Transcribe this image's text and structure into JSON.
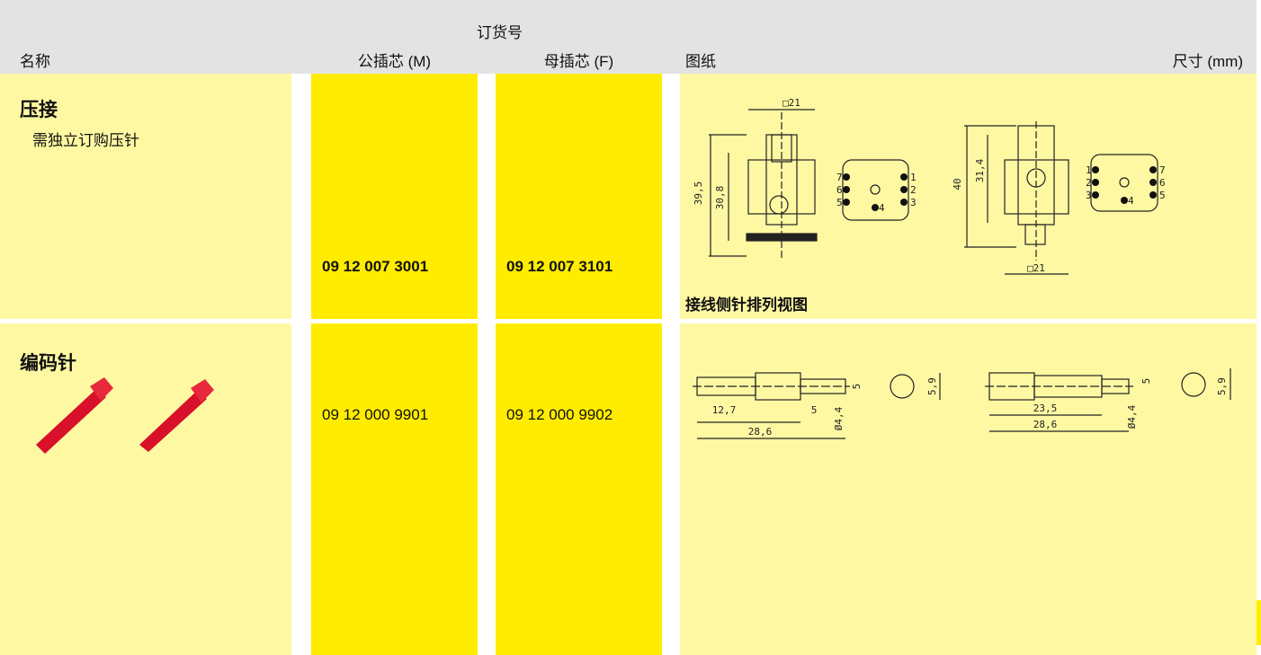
{
  "header": {
    "order_no": "订货号",
    "name": "名称",
    "male": "公插芯 (M)",
    "female": "母插芯 (F)",
    "drawing": "图纸",
    "dims": "尺寸 (mm)"
  },
  "rows": [
    {
      "name": "压接",
      "note": "需独立订购压针",
      "male": "09 12 007 3001",
      "female": "09 12 007 3101",
      "caption": "接线侧针排列视图",
      "dims": [
        "□21",
        "39,5",
        "30,8",
        "40",
        "31,4",
        "□21"
      ],
      "pins": [
        "1",
        "2",
        "3",
        "4",
        "5",
        "6",
        "7"
      ]
    },
    {
      "name": "编码针",
      "male": "09 12 000 9901",
      "female": "09 12 000 9902",
      "dims": [
        "5",
        "5,9",
        "12,7",
        "5",
        "28,6",
        "Ø4,4",
        "5",
        "5,9",
        "23,5",
        "28,6",
        "Ø4,4"
      ]
    }
  ]
}
